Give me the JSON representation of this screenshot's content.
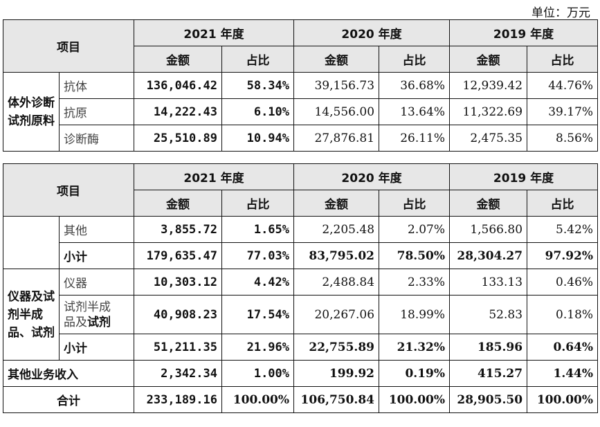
{
  "unit_label": "单位：万元",
  "header": {
    "item": "项目",
    "years": [
      "2021 年度",
      "2020 年度",
      "2019 年度"
    ],
    "amount": "金额",
    "ratio": "占比"
  },
  "table1": {
    "group": "体外诊断试剂原料",
    "rows": [
      {
        "name": "抗体",
        "v": [
          "136,046.42",
          "58.34%",
          "39,156.73",
          "36.68%",
          "12,939.42",
          "44.76%"
        ]
      },
      {
        "name": "抗原",
        "v": [
          "14,222.43",
          "6.10%",
          "14,556.00",
          "13.64%",
          "11,322.69",
          "39.17%"
        ]
      },
      {
        "name": "诊断酶",
        "v": [
          "25,510.89",
          "10.94%",
          "27,876.81",
          "26.11%",
          "2,475.35",
          "8.56%"
        ]
      }
    ]
  },
  "table2": {
    "rows_group1": [
      {
        "name": "其他",
        "v": [
          "3,855.72",
          "1.65%",
          "2,205.48",
          "2.07%",
          "1,566.80",
          "5.42%"
        ]
      },
      {
        "name": "小计",
        "v": [
          "179,635.47",
          "77.03%",
          "83,795.02",
          "78.50%",
          "28,304.27",
          "97.92%"
        ]
      }
    ],
    "group2": "仪器及试剂半成品、试剂",
    "rows_group2": [
      {
        "name": "仪器",
        "v": [
          "10,303.12",
          "4.42%",
          "2,488.84",
          "2.33%",
          "133.13",
          "0.46%"
        ]
      },
      {
        "name_line1": "试剂半成",
        "name_line2a": "品及",
        "name_line2b": "试剂",
        "v": [
          "40,908.23",
          "17.54%",
          "20,267.06",
          "18.99%",
          "52.83",
          "0.18%"
        ]
      },
      {
        "name": "小计",
        "v": [
          "51,211.35",
          "21.96%",
          "22,755.89",
          "21.32%",
          "185.96",
          "0.64%"
        ]
      }
    ],
    "other_income": {
      "name": "其他业务收入",
      "v": [
        "2,342.34",
        "1.00%",
        "199.92",
        "0.19%",
        "415.27",
        "1.44%"
      ]
    },
    "total": {
      "name": "合计",
      "v": [
        "233,189.16",
        "100.00%",
        "106,750.84",
        "100.00%",
        "28,905.50",
        "100.00%"
      ]
    }
  }
}
